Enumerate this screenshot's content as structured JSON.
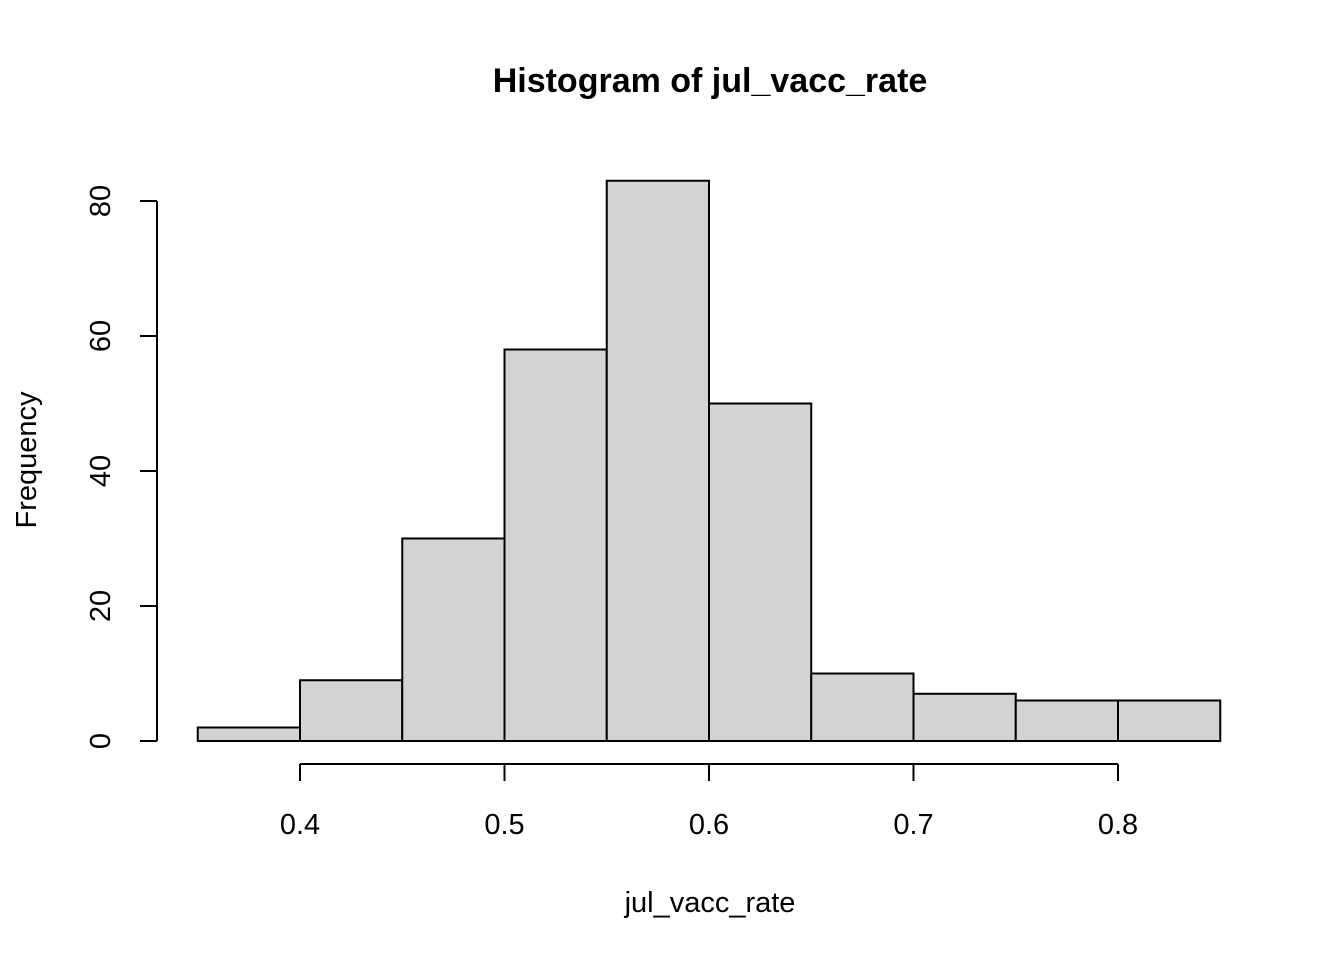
{
  "chart_data": {
    "type": "bar",
    "title": "Histogram of jul_vacc_rate",
    "xlabel": "jul_vacc_rate",
    "ylabel": "Frequency",
    "bins": [
      {
        "start": 0.35,
        "end": 0.4,
        "count": 2
      },
      {
        "start": 0.4,
        "end": 0.45,
        "count": 9
      },
      {
        "start": 0.45,
        "end": 0.5,
        "count": 30
      },
      {
        "start": 0.5,
        "end": 0.55,
        "count": 58
      },
      {
        "start": 0.55,
        "end": 0.6,
        "count": 83
      },
      {
        "start": 0.6,
        "end": 0.65,
        "count": 50
      },
      {
        "start": 0.65,
        "end": 0.7,
        "count": 10
      },
      {
        "start": 0.7,
        "end": 0.75,
        "count": 7
      },
      {
        "start": 0.75,
        "end": 0.8,
        "count": 6
      },
      {
        "start": 0.8,
        "end": 0.85,
        "count": 6
      }
    ],
    "xticks": [
      "0.4",
      "0.5",
      "0.6",
      "0.7",
      "0.8"
    ],
    "yticks": [
      "0",
      "20",
      "40",
      "60",
      "80"
    ],
    "xlim": [
      0.35,
      0.85
    ],
    "ylim": [
      0,
      80
    ],
    "bar_color": "#d3d3d3",
    "grid": false,
    "legend": "none"
  }
}
